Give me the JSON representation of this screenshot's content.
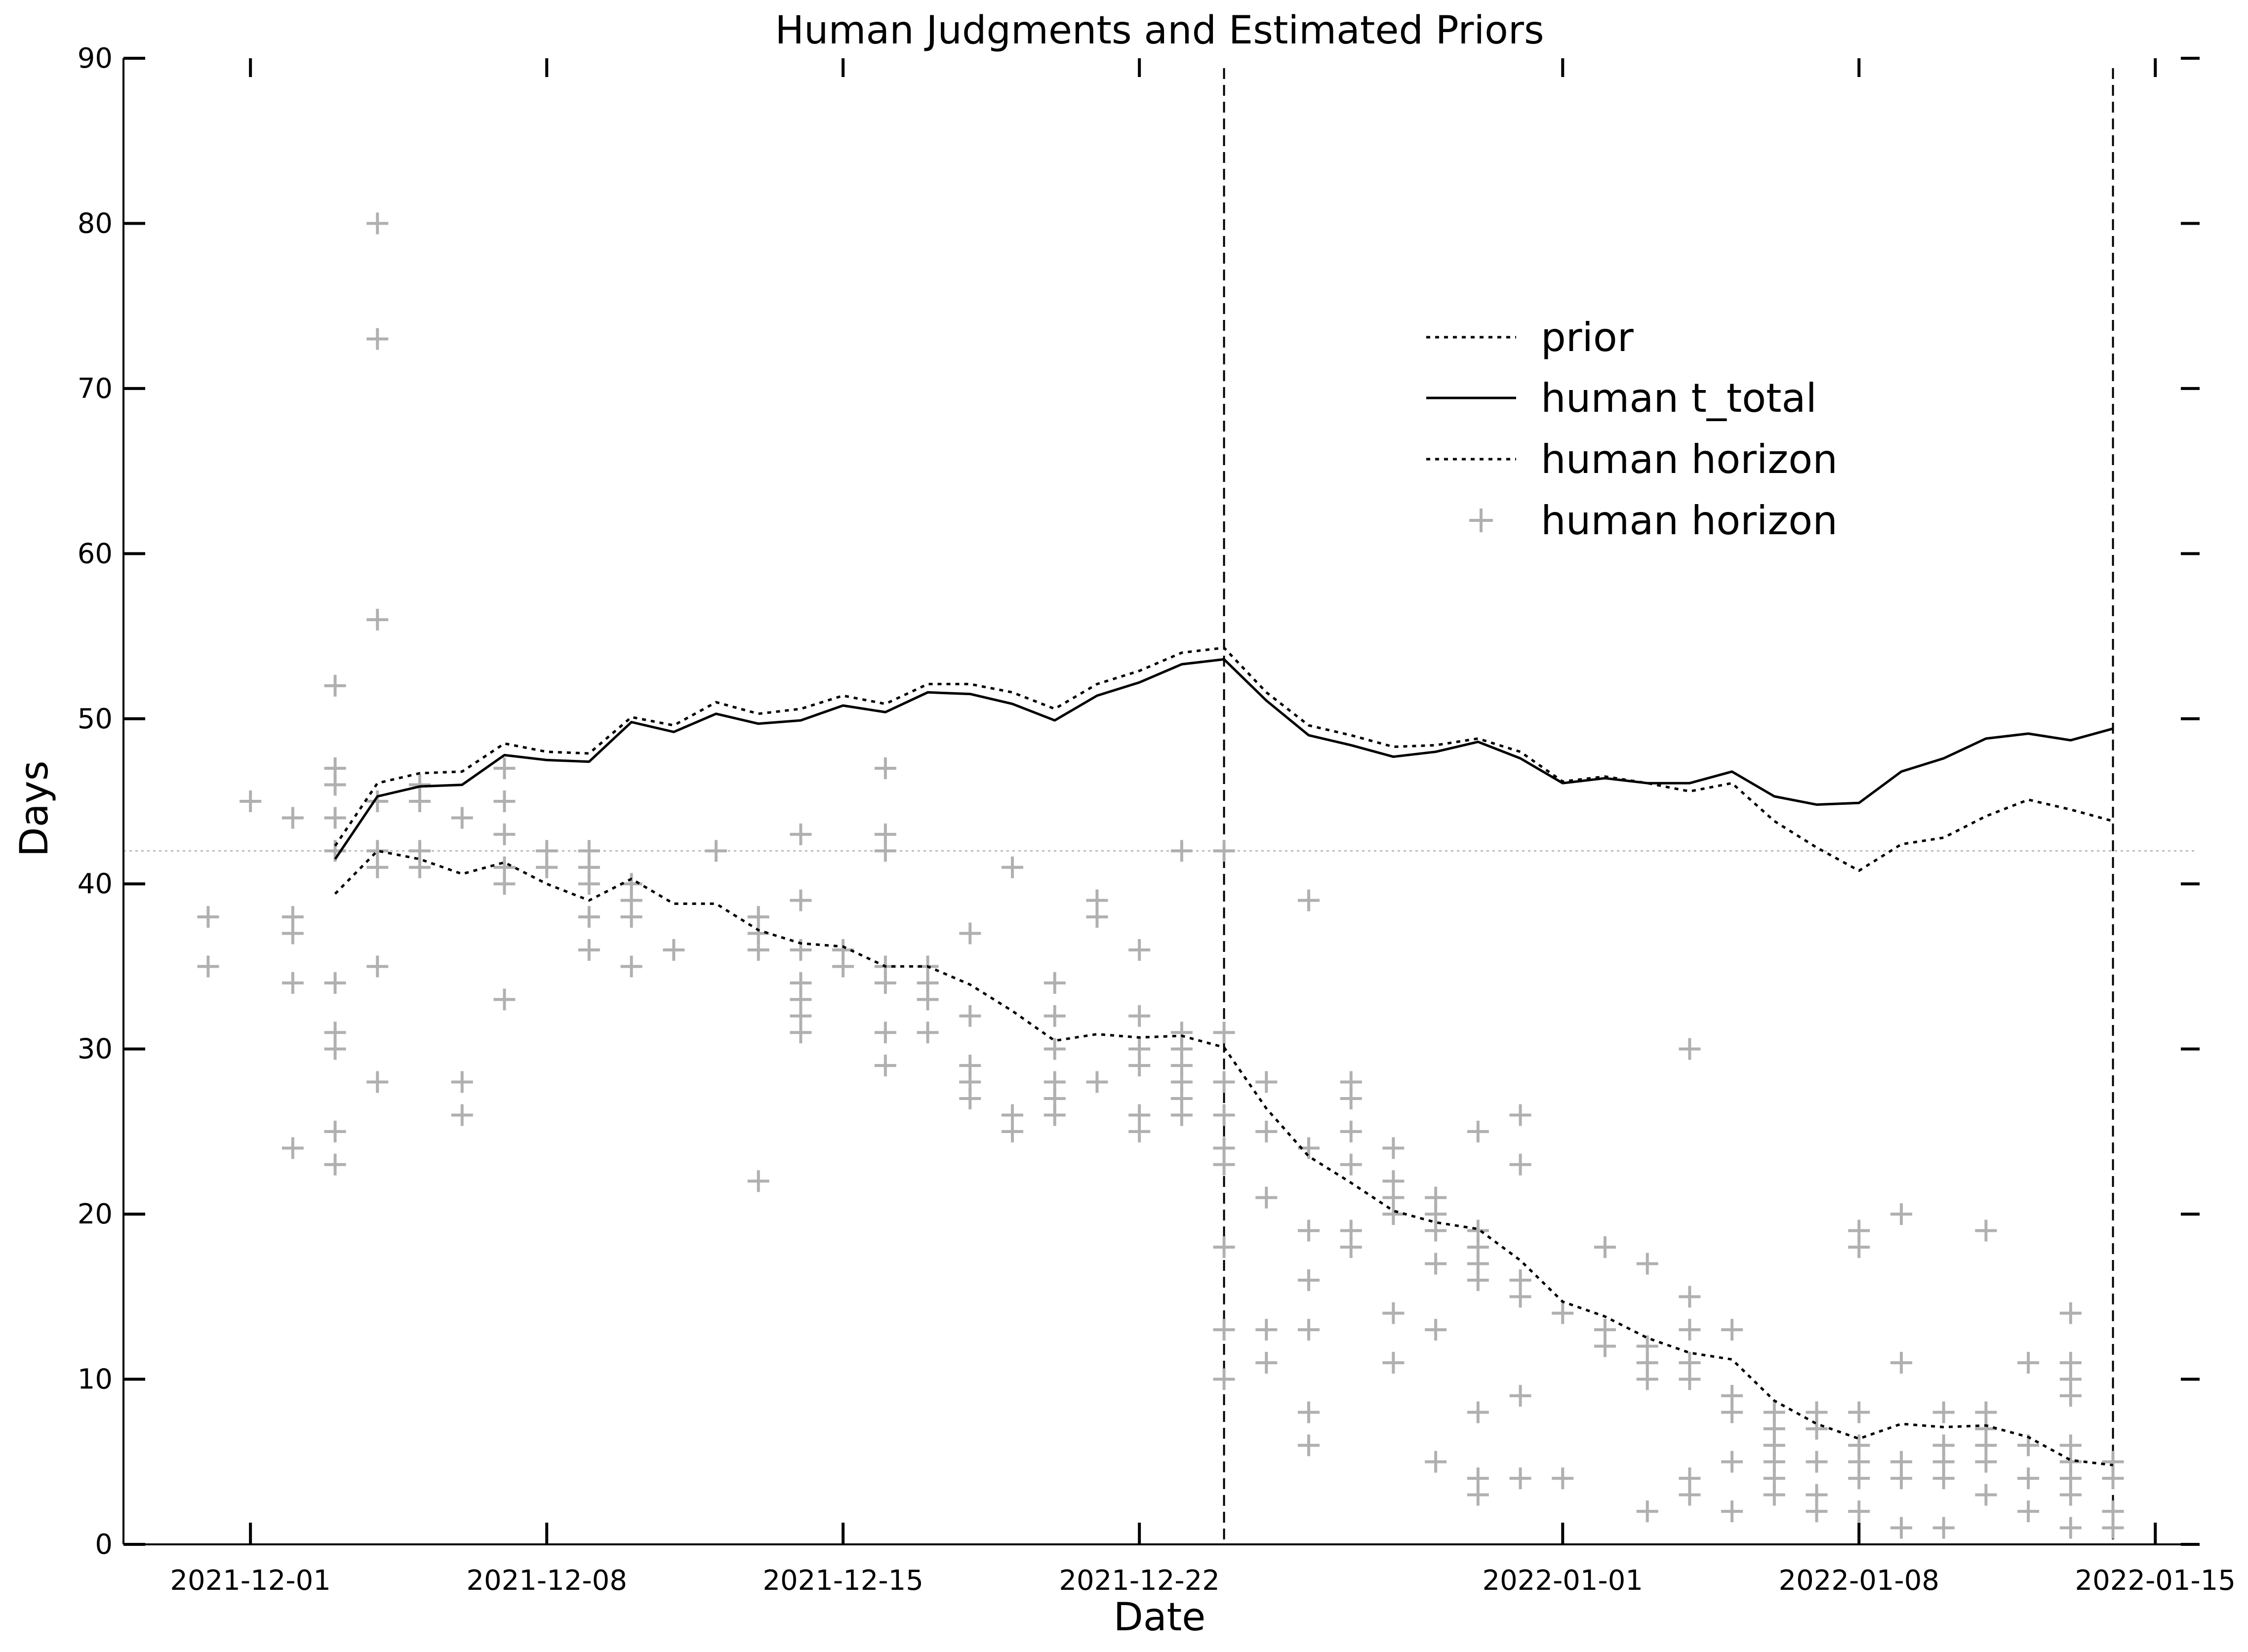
{
  "chart_data": {
    "type": "line",
    "title": "Human Judgments and Estimated Priors",
    "xlabel": "Date",
    "ylabel": "Days",
    "ylim": [
      0,
      90
    ],
    "xlim": [
      "2021-11-28",
      "2022-01-16"
    ],
    "x_tick_labels": [
      "2021-12-01",
      "2021-12-08",
      "2021-12-15",
      "2021-12-22",
      "2022-01-01",
      "2022-01-08",
      "2022-01-15"
    ],
    "y_tick_labels": [
      "0",
      "10",
      "20",
      "30",
      "40",
      "50",
      "60",
      "70",
      "80",
      "90"
    ],
    "grid": false,
    "legend_position": "upper-right",
    "vlines": [
      "2021-12-24",
      "2022-01-14"
    ],
    "hline": 42,
    "series": [
      {
        "name": "prior",
        "style": "dotted",
        "x": [
          "2021-12-03",
          "2021-12-04",
          "2021-12-05",
          "2021-12-06",
          "2021-12-07",
          "2021-12-08",
          "2021-12-09",
          "2021-12-10",
          "2021-12-11",
          "2021-12-12",
          "2021-12-13",
          "2021-12-14",
          "2021-12-15",
          "2021-12-16",
          "2021-12-17",
          "2021-12-18",
          "2021-12-19",
          "2021-12-20",
          "2021-12-21",
          "2021-12-22",
          "2021-12-23",
          "2021-12-24",
          "2021-12-25",
          "2021-12-26",
          "2021-12-27",
          "2021-12-28",
          "2021-12-29",
          "2021-12-30",
          "2021-12-31",
          "2022-01-01",
          "2022-01-02",
          "2022-01-03",
          "2022-01-04",
          "2022-01-05",
          "2022-01-06",
          "2022-01-07",
          "2022-01-08",
          "2022-01-09",
          "2022-01-10",
          "2022-01-11",
          "2022-01-12",
          "2022-01-13",
          "2022-01-14"
        ],
        "values": [
          42.3,
          46.1,
          46.7,
          46.8,
          48.5,
          48.0,
          47.9,
          50.1,
          49.6,
          51.0,
          50.3,
          50.6,
          51.4,
          50.9,
          52.1,
          52.1,
          51.6,
          50.6,
          52.1,
          52.9,
          54.0,
          54.3,
          51.6,
          49.6,
          49.0,
          48.3,
          48.4,
          48.8,
          48.0,
          46.2,
          46.5,
          46.1,
          45.6,
          46.1,
          43.8,
          42.2,
          40.8,
          42.4,
          42.8,
          44.1,
          45.1,
          44.5,
          43.8
        ]
      },
      {
        "name": "human t_total",
        "style": "solid",
        "x": [
          "2021-12-03",
          "2021-12-04",
          "2021-12-05",
          "2021-12-06",
          "2021-12-07",
          "2021-12-08",
          "2021-12-09",
          "2021-12-10",
          "2021-12-11",
          "2021-12-12",
          "2021-12-13",
          "2021-12-14",
          "2021-12-15",
          "2021-12-16",
          "2021-12-17",
          "2021-12-18",
          "2021-12-19",
          "2021-12-20",
          "2021-12-21",
          "2021-12-22",
          "2021-12-23",
          "2021-12-24",
          "2021-12-25",
          "2021-12-26",
          "2021-12-27",
          "2021-12-28",
          "2021-12-29",
          "2021-12-30",
          "2021-12-31",
          "2022-01-01",
          "2022-01-02",
          "2022-01-03",
          "2022-01-04",
          "2022-01-05",
          "2022-01-06",
          "2022-01-07",
          "2022-01-08",
          "2022-01-09",
          "2022-01-10",
          "2022-01-11",
          "2022-01-12",
          "2022-01-13",
          "2022-01-14"
        ],
        "values": [
          41.5,
          45.3,
          45.9,
          46.0,
          47.8,
          47.5,
          47.4,
          49.8,
          49.2,
          50.3,
          49.7,
          49.9,
          50.8,
          50.4,
          51.6,
          51.5,
          50.9,
          49.9,
          51.4,
          52.2,
          53.3,
          53.6,
          51.1,
          49.0,
          48.4,
          47.7,
          48.0,
          48.6,
          47.6,
          46.1,
          46.4,
          46.1,
          46.1,
          46.8,
          45.3,
          44.8,
          44.9,
          46.8,
          47.6,
          48.8,
          49.1,
          48.7,
          49.4
        ]
      },
      {
        "name": "human horizon",
        "style": "dotted",
        "x": [
          "2021-12-03",
          "2021-12-04",
          "2021-12-05",
          "2021-12-06",
          "2021-12-07",
          "2021-12-08",
          "2021-12-09",
          "2021-12-10",
          "2021-12-11",
          "2021-12-12",
          "2021-12-13",
          "2021-12-14",
          "2021-12-15",
          "2021-12-16",
          "2021-12-17",
          "2021-12-18",
          "2021-12-19",
          "2021-12-20",
          "2021-12-21",
          "2021-12-22",
          "2021-12-23",
          "2021-12-24",
          "2021-12-25",
          "2021-12-26",
          "2021-12-27",
          "2021-12-28",
          "2021-12-29",
          "2021-12-30",
          "2021-12-31",
          "2022-01-01",
          "2022-01-02",
          "2022-01-03",
          "2022-01-04",
          "2022-01-05",
          "2022-01-06",
          "2022-01-07",
          "2022-01-08",
          "2022-01-09",
          "2022-01-10",
          "2022-01-11",
          "2022-01-12",
          "2022-01-13",
          "2022-01-14"
        ],
        "values": [
          39.4,
          42.0,
          41.5,
          40.6,
          41.3,
          40.0,
          39.0,
          40.3,
          38.8,
          38.8,
          37.2,
          36.4,
          36.2,
          35.0,
          35.0,
          33.9,
          32.3,
          30.5,
          30.9,
          30.7,
          30.8,
          30.1,
          26.4,
          23.5,
          21.9,
          20.2,
          19.5,
          19.1,
          17.2,
          14.7,
          13.8,
          12.5,
          11.6,
          11.2,
          8.7,
          7.3,
          6.4,
          7.3,
          7.1,
          7.2,
          6.5,
          5.1,
          4.8
        ]
      }
    ],
    "scatter": {
      "name": "human horizon",
      "marker": "+",
      "points": [
        [
          "2021-11-30",
          38
        ],
        [
          "2021-11-30",
          35
        ],
        [
          "2021-12-01",
          45
        ],
        [
          "2021-12-02",
          44
        ],
        [
          "2021-12-02",
          38
        ],
        [
          "2021-12-02",
          37
        ],
        [
          "2021-12-02",
          34
        ],
        [
          "2021-12-02",
          24
        ],
        [
          "2021-12-03",
          52
        ],
        [
          "2021-12-03",
          47
        ],
        [
          "2021-12-03",
          46
        ],
        [
          "2021-12-03",
          44
        ],
        [
          "2021-12-03",
          42
        ],
        [
          "2021-12-03",
          34
        ],
        [
          "2021-12-03",
          31
        ],
        [
          "2021-12-03",
          30
        ],
        [
          "2021-12-03",
          25
        ],
        [
          "2021-12-03",
          23
        ],
        [
          "2021-12-04",
          80
        ],
        [
          "2021-12-04",
          73
        ],
        [
          "2021-12-04",
          56
        ],
        [
          "2021-12-04",
          45
        ],
        [
          "2021-12-04",
          42
        ],
        [
          "2021-12-04",
          41
        ],
        [
          "2021-12-04",
          35
        ],
        [
          "2021-12-04",
          28
        ],
        [
          "2021-12-05",
          46
        ],
        [
          "2021-12-05",
          45
        ],
        [
          "2021-12-05",
          42
        ],
        [
          "2021-12-05",
          41
        ],
        [
          "2021-12-06",
          44
        ],
        [
          "2021-12-06",
          28
        ],
        [
          "2021-12-06",
          26
        ],
        [
          "2021-12-07",
          47
        ],
        [
          "2021-12-07",
          45
        ],
        [
          "2021-12-07",
          43
        ],
        [
          "2021-12-07",
          41
        ],
        [
          "2021-12-07",
          40
        ],
        [
          "2021-12-07",
          33
        ],
        [
          "2021-12-08",
          42
        ],
        [
          "2021-12-08",
          41
        ],
        [
          "2021-12-09",
          42
        ],
        [
          "2021-12-09",
          41
        ],
        [
          "2021-12-09",
          40
        ],
        [
          "2021-12-09",
          38
        ],
        [
          "2021-12-09",
          36
        ],
        [
          "2021-12-10",
          40
        ],
        [
          "2021-12-10",
          39
        ],
        [
          "2021-12-10",
          38
        ],
        [
          "2021-12-10",
          35
        ],
        [
          "2021-12-11",
          36
        ],
        [
          "2021-12-12",
          42
        ],
        [
          "2021-12-13",
          38
        ],
        [
          "2021-12-13",
          37
        ],
        [
          "2021-12-13",
          36
        ],
        [
          "2021-12-13",
          22
        ],
        [
          "2021-12-14",
          43
        ],
        [
          "2021-12-14",
          39
        ],
        [
          "2021-12-14",
          36
        ],
        [
          "2021-12-14",
          34
        ],
        [
          "2021-12-14",
          33
        ],
        [
          "2021-12-14",
          32
        ],
        [
          "2021-12-14",
          31
        ],
        [
          "2021-12-15",
          36
        ],
        [
          "2021-12-15",
          35
        ],
        [
          "2021-12-16",
          47
        ],
        [
          "2021-12-16",
          43
        ],
        [
          "2021-12-16",
          42
        ],
        [
          "2021-12-16",
          35
        ],
        [
          "2021-12-16",
          34
        ],
        [
          "2021-12-16",
          31
        ],
        [
          "2021-12-16",
          29
        ],
        [
          "2021-12-17",
          35
        ],
        [
          "2021-12-17",
          34
        ],
        [
          "2021-12-17",
          33
        ],
        [
          "2021-12-17",
          31
        ],
        [
          "2021-12-18",
          37
        ],
        [
          "2021-12-18",
          32
        ],
        [
          "2021-12-18",
          29
        ],
        [
          "2021-12-18",
          28
        ],
        [
          "2021-12-18",
          27
        ],
        [
          "2021-12-19",
          41
        ],
        [
          "2021-12-19",
          26
        ],
        [
          "2021-12-19",
          25
        ],
        [
          "2021-12-20",
          34
        ],
        [
          "2021-12-20",
          32
        ],
        [
          "2021-12-20",
          30
        ],
        [
          "2021-12-20",
          28
        ],
        [
          "2021-12-20",
          27
        ],
        [
          "2021-12-20",
          26
        ],
        [
          "2021-12-21",
          39
        ],
        [
          "2021-12-21",
          38
        ],
        [
          "2021-12-21",
          28
        ],
        [
          "2021-12-22",
          36
        ],
        [
          "2021-12-22",
          32
        ],
        [
          "2021-12-22",
          30
        ],
        [
          "2021-12-22",
          29
        ],
        [
          "2021-12-22",
          26
        ],
        [
          "2021-12-22",
          25
        ],
        [
          "2021-12-23",
          42
        ],
        [
          "2021-12-23",
          31
        ],
        [
          "2021-12-23",
          30
        ],
        [
          "2021-12-23",
          29
        ],
        [
          "2021-12-23",
          28
        ],
        [
          "2021-12-23",
          27
        ],
        [
          "2021-12-23",
          26
        ],
        [
          "2021-12-24",
          42
        ],
        [
          "2021-12-24",
          31
        ],
        [
          "2021-12-24",
          28
        ],
        [
          "2021-12-24",
          26
        ],
        [
          "2021-12-24",
          24
        ],
        [
          "2021-12-24",
          23
        ],
        [
          "2021-12-24",
          18
        ],
        [
          "2021-12-24",
          13
        ],
        [
          "2021-12-24",
          10
        ],
        [
          "2021-12-25",
          28
        ],
        [
          "2021-12-25",
          25
        ],
        [
          "2021-12-25",
          21
        ],
        [
          "2021-12-25",
          13
        ],
        [
          "2021-12-25",
          11
        ],
        [
          "2021-12-26",
          39
        ],
        [
          "2021-12-26",
          24
        ],
        [
          "2021-12-26",
          19
        ],
        [
          "2021-12-26",
          16
        ],
        [
          "2021-12-26",
          13
        ],
        [
          "2021-12-26",
          8
        ],
        [
          "2021-12-26",
          6
        ],
        [
          "2021-12-27",
          28
        ],
        [
          "2021-12-27",
          27
        ],
        [
          "2021-12-27",
          25
        ],
        [
          "2021-12-27",
          23
        ],
        [
          "2021-12-27",
          19
        ],
        [
          "2021-12-27",
          18
        ],
        [
          "2021-12-28",
          24
        ],
        [
          "2021-12-28",
          22
        ],
        [
          "2021-12-28",
          21
        ],
        [
          "2021-12-28",
          20
        ],
        [
          "2021-12-28",
          14
        ],
        [
          "2021-12-28",
          11
        ],
        [
          "2021-12-29",
          21
        ],
        [
          "2021-12-29",
          20
        ],
        [
          "2021-12-29",
          19
        ],
        [
          "2021-12-29",
          17
        ],
        [
          "2021-12-29",
          13
        ],
        [
          "2021-12-29",
          5
        ],
        [
          "2021-12-30",
          25
        ],
        [
          "2021-12-30",
          19
        ],
        [
          "2021-12-30",
          18
        ],
        [
          "2021-12-30",
          17
        ],
        [
          "2021-12-30",
          16
        ],
        [
          "2021-12-30",
          8
        ],
        [
          "2021-12-30",
          4
        ],
        [
          "2021-12-30",
          3
        ],
        [
          "2021-12-31",
          26
        ],
        [
          "2021-12-31",
          23
        ],
        [
          "2021-12-31",
          16
        ],
        [
          "2021-12-31",
          15
        ],
        [
          "2021-12-31",
          9
        ],
        [
          "2021-12-31",
          4
        ],
        [
          "2022-01-01",
          14
        ],
        [
          "2022-01-01",
          4
        ],
        [
          "2022-01-02",
          18
        ],
        [
          "2022-01-02",
          13
        ],
        [
          "2022-01-02",
          12
        ],
        [
          "2022-01-03",
          17
        ],
        [
          "2022-01-03",
          12
        ],
        [
          "2022-01-03",
          11
        ],
        [
          "2022-01-03",
          10
        ],
        [
          "2022-01-03",
          2
        ],
        [
          "2022-01-04",
          30
        ],
        [
          "2022-01-04",
          15
        ],
        [
          "2022-01-04",
          13
        ],
        [
          "2022-01-04",
          11
        ],
        [
          "2022-01-04",
          10
        ],
        [
          "2022-01-04",
          4
        ],
        [
          "2022-01-04",
          3
        ],
        [
          "2022-01-05",
          13
        ],
        [
          "2022-01-05",
          9
        ],
        [
          "2022-01-05",
          8
        ],
        [
          "2022-01-05",
          5
        ],
        [
          "2022-01-05",
          2
        ],
        [
          "2022-01-06",
          8
        ],
        [
          "2022-01-06",
          7
        ],
        [
          "2022-01-06",
          6
        ],
        [
          "2022-01-06",
          5
        ],
        [
          "2022-01-06",
          4
        ],
        [
          "2022-01-06",
          3
        ],
        [
          "2022-01-07",
          8
        ],
        [
          "2022-01-07",
          7
        ],
        [
          "2022-01-07",
          5
        ],
        [
          "2022-01-07",
          3
        ],
        [
          "2022-01-07",
          2
        ],
        [
          "2022-01-08",
          19
        ],
        [
          "2022-01-08",
          18
        ],
        [
          "2022-01-08",
          8
        ],
        [
          "2022-01-08",
          6
        ],
        [
          "2022-01-08",
          5
        ],
        [
          "2022-01-08",
          4
        ],
        [
          "2022-01-08",
          2
        ],
        [
          "2022-01-09",
          20
        ],
        [
          "2022-01-09",
          11
        ],
        [
          "2022-01-09",
          5
        ],
        [
          "2022-01-09",
          4
        ],
        [
          "2022-01-09",
          1
        ],
        [
          "2022-01-10",
          8
        ],
        [
          "2022-01-10",
          6
        ],
        [
          "2022-01-10",
          5
        ],
        [
          "2022-01-10",
          4
        ],
        [
          "2022-01-10",
          1
        ],
        [
          "2022-01-11",
          19
        ],
        [
          "2022-01-11",
          8
        ],
        [
          "2022-01-11",
          7
        ],
        [
          "2022-01-11",
          6
        ],
        [
          "2022-01-11",
          5
        ],
        [
          "2022-01-11",
          3
        ],
        [
          "2022-01-12",
          11
        ],
        [
          "2022-01-12",
          6
        ],
        [
          "2022-01-12",
          4
        ],
        [
          "2022-01-12",
          2
        ],
        [
          "2022-01-13",
          14
        ],
        [
          "2022-01-13",
          11
        ],
        [
          "2022-01-13",
          10
        ],
        [
          "2022-01-13",
          9
        ],
        [
          "2022-01-13",
          6
        ],
        [
          "2022-01-13",
          5
        ],
        [
          "2022-01-13",
          4
        ],
        [
          "2022-01-13",
          3
        ],
        [
          "2022-01-13",
          1
        ],
        [
          "2022-01-14",
          5
        ],
        [
          "2022-01-14",
          4
        ],
        [
          "2022-01-14",
          2
        ],
        [
          "2022-01-14",
          1
        ]
      ]
    }
  }
}
